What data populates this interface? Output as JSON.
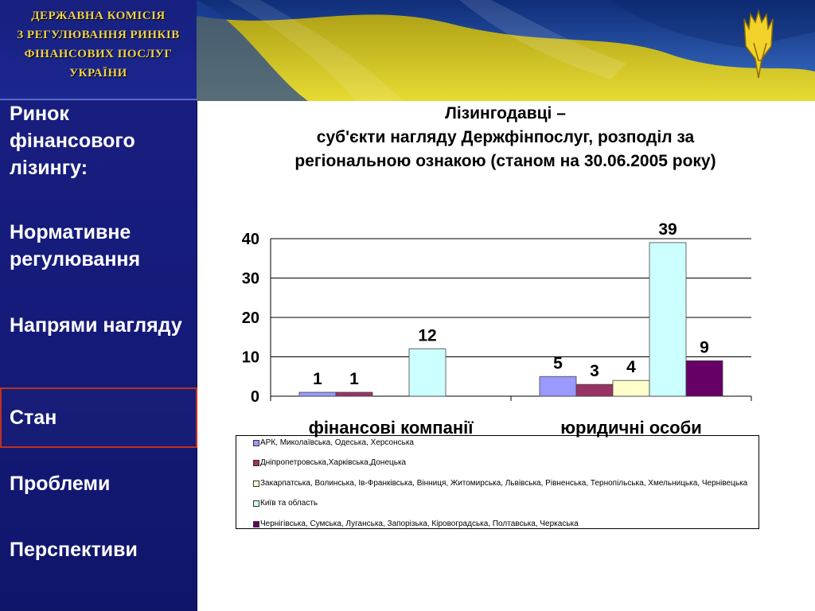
{
  "org": {
    "lines": [
      "ДЕРЖАВНА  КОМІСІЯ",
      "З  РЕГУЛЮВАННЯ  РИНКІВ",
      "ФІНАНСОВИХ  ПОСЛУГ",
      "УКРАЇНИ"
    ]
  },
  "nav": {
    "items": [
      {
        "label": "Ринок фінансового лізингу:"
      },
      {
        "label": "Нормативне регулювання"
      },
      {
        "label": "Напрями нагляду"
      },
      {
        "label": "Стан"
      },
      {
        "label": "Проблеми"
      },
      {
        "label": "Перспективи"
      }
    ],
    "active_index": 3
  },
  "banner": {
    "emblem_icon": "trident-emblem-icon"
  },
  "colors": {
    "sidebar": "#1a1f82",
    "org_text": "#f0d24a",
    "active_border": "#c0301e",
    "flag_blue": "#2a5cb8",
    "flag_yellow": "#e7d51f"
  },
  "chart_data": {
    "type": "bar",
    "title": "Лізингодавці – суб'єкти нагляду Держфінпослуг, розподіл за регіональною ознакою (станом на 30.06.2005 року)",
    "title_lines": [
      "Лізингодавці –",
      "суб'єкти нагляду Держфінпослуг, розподіл за",
      "регіональною ознакою (станом на 30.06.2005 року)"
    ],
    "categories": [
      "фінансові компанії",
      "юридичні особи"
    ],
    "y_ticks": [
      "0",
      "10",
      "20",
      "30",
      "40"
    ],
    "ylim": [
      0,
      40
    ],
    "grid": true,
    "legend_position": "bottom",
    "series": [
      {
        "name": "АРК, Миколаївська, Одеська, Херсонська",
        "color": "#9999ff",
        "values": [
          1,
          5
        ]
      },
      {
        "name": "Дніпропетровська,Харківська,Донецька",
        "color": "#993366",
        "values": [
          1,
          3
        ]
      },
      {
        "name": "Закарпатська, Волинська, Ів-Франківська, Вінниця, Житомирська, Львівська, Рівненська, Тернопільська, Хмельницька, Чернівецька",
        "color": "#ffffcc",
        "values": [
          null,
          4
        ]
      },
      {
        "name": "Київ та область",
        "color": "#ccffff",
        "values": [
          12,
          39
        ]
      },
      {
        "name": "Чернігівська, Сумська, Луганська, Запорізька, Кіровоградська, Полтавська, Черкаська",
        "color": "#660066",
        "values": [
          null,
          9
        ]
      }
    ]
  }
}
